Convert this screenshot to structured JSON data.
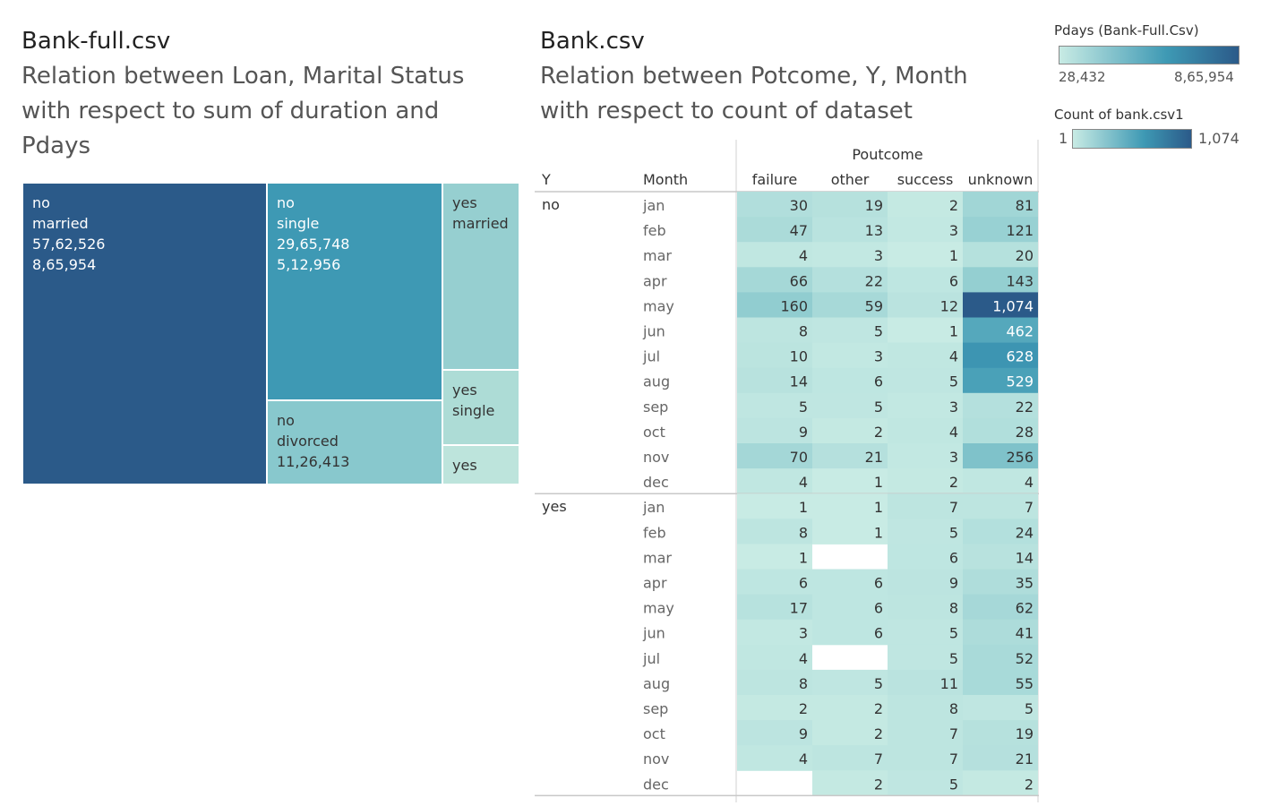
{
  "left_panel": {
    "title": "Bank-full.csv",
    "subtitle_lines": [
      "Relation between Loan, Marital Status",
      "with respect to sum of duration and",
      "Pdays"
    ]
  },
  "right_panel": {
    "title": "Bank.csv",
    "subtitle_lines": [
      "Relation between Potcome, Y, Month",
      "with respect to count of dataset"
    ]
  },
  "legends": {
    "pdays": {
      "title": "Pdays (Bank-Full.Csv)",
      "min_label": "28,432",
      "max_label": "8,65,954",
      "min_color": "#c8ebe4",
      "max_color": "#2b5a89"
    },
    "count": {
      "title": "Count of bank.csv1",
      "min_label": "1",
      "max_label": "1,074",
      "min_color": "#c8ebe4",
      "max_color": "#2b5a89"
    }
  },
  "chart_data": [
    {
      "type": "treemap",
      "title": "Bank-full.csv",
      "size_measure": "sum of duration",
      "color_measure": "Pdays",
      "cells": [
        {
          "loan": "no",
          "marital": "married",
          "duration_label": "57,62,526",
          "pdays_label": "8,65,954",
          "duration": 5762526,
          "pdays": 865954,
          "color": "#2b5a89",
          "text_color": "#ffffff"
        },
        {
          "loan": "no",
          "marital": "single",
          "duration_label": "29,65,748",
          "pdays_label": "5,12,956",
          "duration": 2965748,
          "pdays": 512956,
          "color": "#3e99b4",
          "text_color": "#ffffff"
        },
        {
          "loan": "no",
          "marital": "divorced",
          "duration_label": "11,26,413",
          "pdays_label": "",
          "duration": 1126413,
          "color": "#88c8cd",
          "text_color": "#333333"
        },
        {
          "loan": "yes",
          "marital": "married",
          "duration_label": "",
          "pdays_label": "",
          "duration": 738000,
          "color": "#96cfd0",
          "text_color": "#333333"
        },
        {
          "loan": "yes",
          "marital": "single",
          "duration_label": "",
          "pdays_label": "",
          "duration": 360000,
          "color": "#addcd6",
          "text_color": "#333333"
        },
        {
          "loan": "yes",
          "marital": "",
          "duration_label": "",
          "pdays_label": "",
          "duration": 185000,
          "color": "#bde4dc",
          "text_color": "#333333"
        }
      ]
    },
    {
      "type": "heatmap",
      "title": "Bank.csv",
      "column_group_label": "Poutcome",
      "row_header_label": "Y",
      "month_header_label": "Month",
      "columns": [
        "failure",
        "other",
        "success",
        "unknown"
      ],
      "color_min": 1,
      "color_max": 1074,
      "groups": [
        {
          "y": "no",
          "rows": [
            {
              "month": "jan",
              "values": [
                30,
                19,
                2,
                81
              ]
            },
            {
              "month": "feb",
              "values": [
                47,
                13,
                3,
                121
              ]
            },
            {
              "month": "mar",
              "values": [
                4,
                3,
                1,
                20
              ]
            },
            {
              "month": "apr",
              "values": [
                66,
                22,
                6,
                143
              ]
            },
            {
              "month": "may",
              "values": [
                160,
                59,
                12,
                1074
              ]
            },
            {
              "month": "jun",
              "values": [
                8,
                5,
                1,
                462
              ]
            },
            {
              "month": "jul",
              "values": [
                10,
                3,
                4,
                628
              ]
            },
            {
              "month": "aug",
              "values": [
                14,
                6,
                5,
                529
              ]
            },
            {
              "month": "sep",
              "values": [
                5,
                5,
                3,
                22
              ]
            },
            {
              "month": "oct",
              "values": [
                9,
                2,
                4,
                28
              ]
            },
            {
              "month": "nov",
              "values": [
                70,
                21,
                3,
                256
              ]
            },
            {
              "month": "dec",
              "values": [
                4,
                1,
                2,
                4
              ]
            }
          ]
        },
        {
          "y": "yes",
          "rows": [
            {
              "month": "jan",
              "values": [
                1,
                1,
                7,
                7
              ]
            },
            {
              "month": "feb",
              "values": [
                8,
                1,
                5,
                24
              ]
            },
            {
              "month": "mar",
              "values": [
                1,
                null,
                6,
                14
              ]
            },
            {
              "month": "apr",
              "values": [
                6,
                6,
                9,
                35
              ]
            },
            {
              "month": "may",
              "values": [
                17,
                6,
                8,
                62
              ]
            },
            {
              "month": "jun",
              "values": [
                3,
                6,
                5,
                41
              ]
            },
            {
              "month": "jul",
              "values": [
                4,
                null,
                5,
                52
              ]
            },
            {
              "month": "aug",
              "values": [
                8,
                5,
                11,
                55
              ]
            },
            {
              "month": "sep",
              "values": [
                2,
                2,
                8,
                5
              ]
            },
            {
              "month": "oct",
              "values": [
                9,
                2,
                7,
                19
              ]
            },
            {
              "month": "nov",
              "values": [
                4,
                7,
                7,
                21
              ]
            },
            {
              "month": "dec",
              "values": [
                null,
                2,
                5,
                2
              ]
            }
          ]
        }
      ]
    }
  ]
}
